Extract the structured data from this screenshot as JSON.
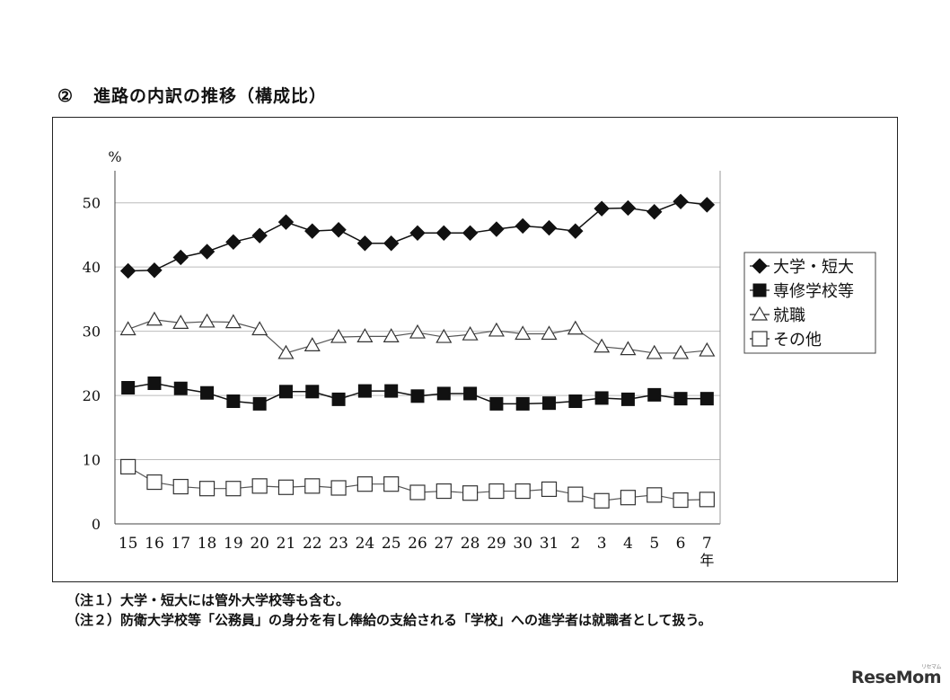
{
  "section": {
    "number": "②",
    "title": "進路の内訳の推移（構成比）"
  },
  "notes": [
    "（注１）大学・短大には管外大学校等も含む。",
    "（注２）防衛大学校等「公務員」の身分を有し俸給の支給される「学校」への進学者は就職者として扱う。"
  ],
  "watermark": {
    "brand": "ReseMom",
    "sub": "リセマム"
  },
  "chart_data": {
    "type": "line",
    "y_unit_label": "%",
    "x_unit_label": "年",
    "ylim": [
      0,
      55
    ],
    "yticks": [
      0,
      10,
      20,
      30,
      40,
      50
    ],
    "grid": "horizontal",
    "legend_position": "right",
    "categories": [
      "15",
      "16",
      "17",
      "18",
      "19",
      "20",
      "21",
      "22",
      "23",
      "24",
      "25",
      "26",
      "27",
      "28",
      "29",
      "30",
      "31",
      "2",
      "3",
      "4",
      "5",
      "6",
      "7"
    ],
    "series": [
      {
        "name": "大学・短大",
        "marker": "filled-diamond",
        "values": [
          39.4,
          39.5,
          41.5,
          42.4,
          43.9,
          44.9,
          47.0,
          45.6,
          45.8,
          43.7,
          43.7,
          45.3,
          45.3,
          45.3,
          45.9,
          46.4,
          46.1,
          45.6,
          49.1,
          49.2,
          48.6,
          50.2,
          49.7
        ]
      },
      {
        "name": "専修学校等",
        "marker": "filled-square",
        "values": [
          21.2,
          21.9,
          21.1,
          20.4,
          19.1,
          18.7,
          20.6,
          20.6,
          19.4,
          20.7,
          20.7,
          19.9,
          20.3,
          20.3,
          18.7,
          18.7,
          18.8,
          19.1,
          19.6,
          19.4,
          20.1,
          19.5,
          19.5
        ]
      },
      {
        "name": "就職",
        "marker": "open-triangle",
        "values": [
          30.3,
          31.8,
          31.3,
          31.5,
          31.4,
          30.3,
          26.6,
          27.8,
          29.1,
          29.2,
          29.2,
          29.8,
          29.1,
          29.5,
          30.1,
          29.6,
          29.6,
          30.4,
          27.6,
          27.2,
          26.6,
          26.6,
          27.0
        ]
      },
      {
        "name": "その他",
        "marker": "open-square",
        "values": [
          8.9,
          6.5,
          5.8,
          5.5,
          5.5,
          5.9,
          5.7,
          5.9,
          5.6,
          6.2,
          6.2,
          4.9,
          5.1,
          4.8,
          5.1,
          5.1,
          5.4,
          4.6,
          3.6,
          4.1,
          4.5,
          3.7,
          3.8
        ]
      }
    ]
  }
}
